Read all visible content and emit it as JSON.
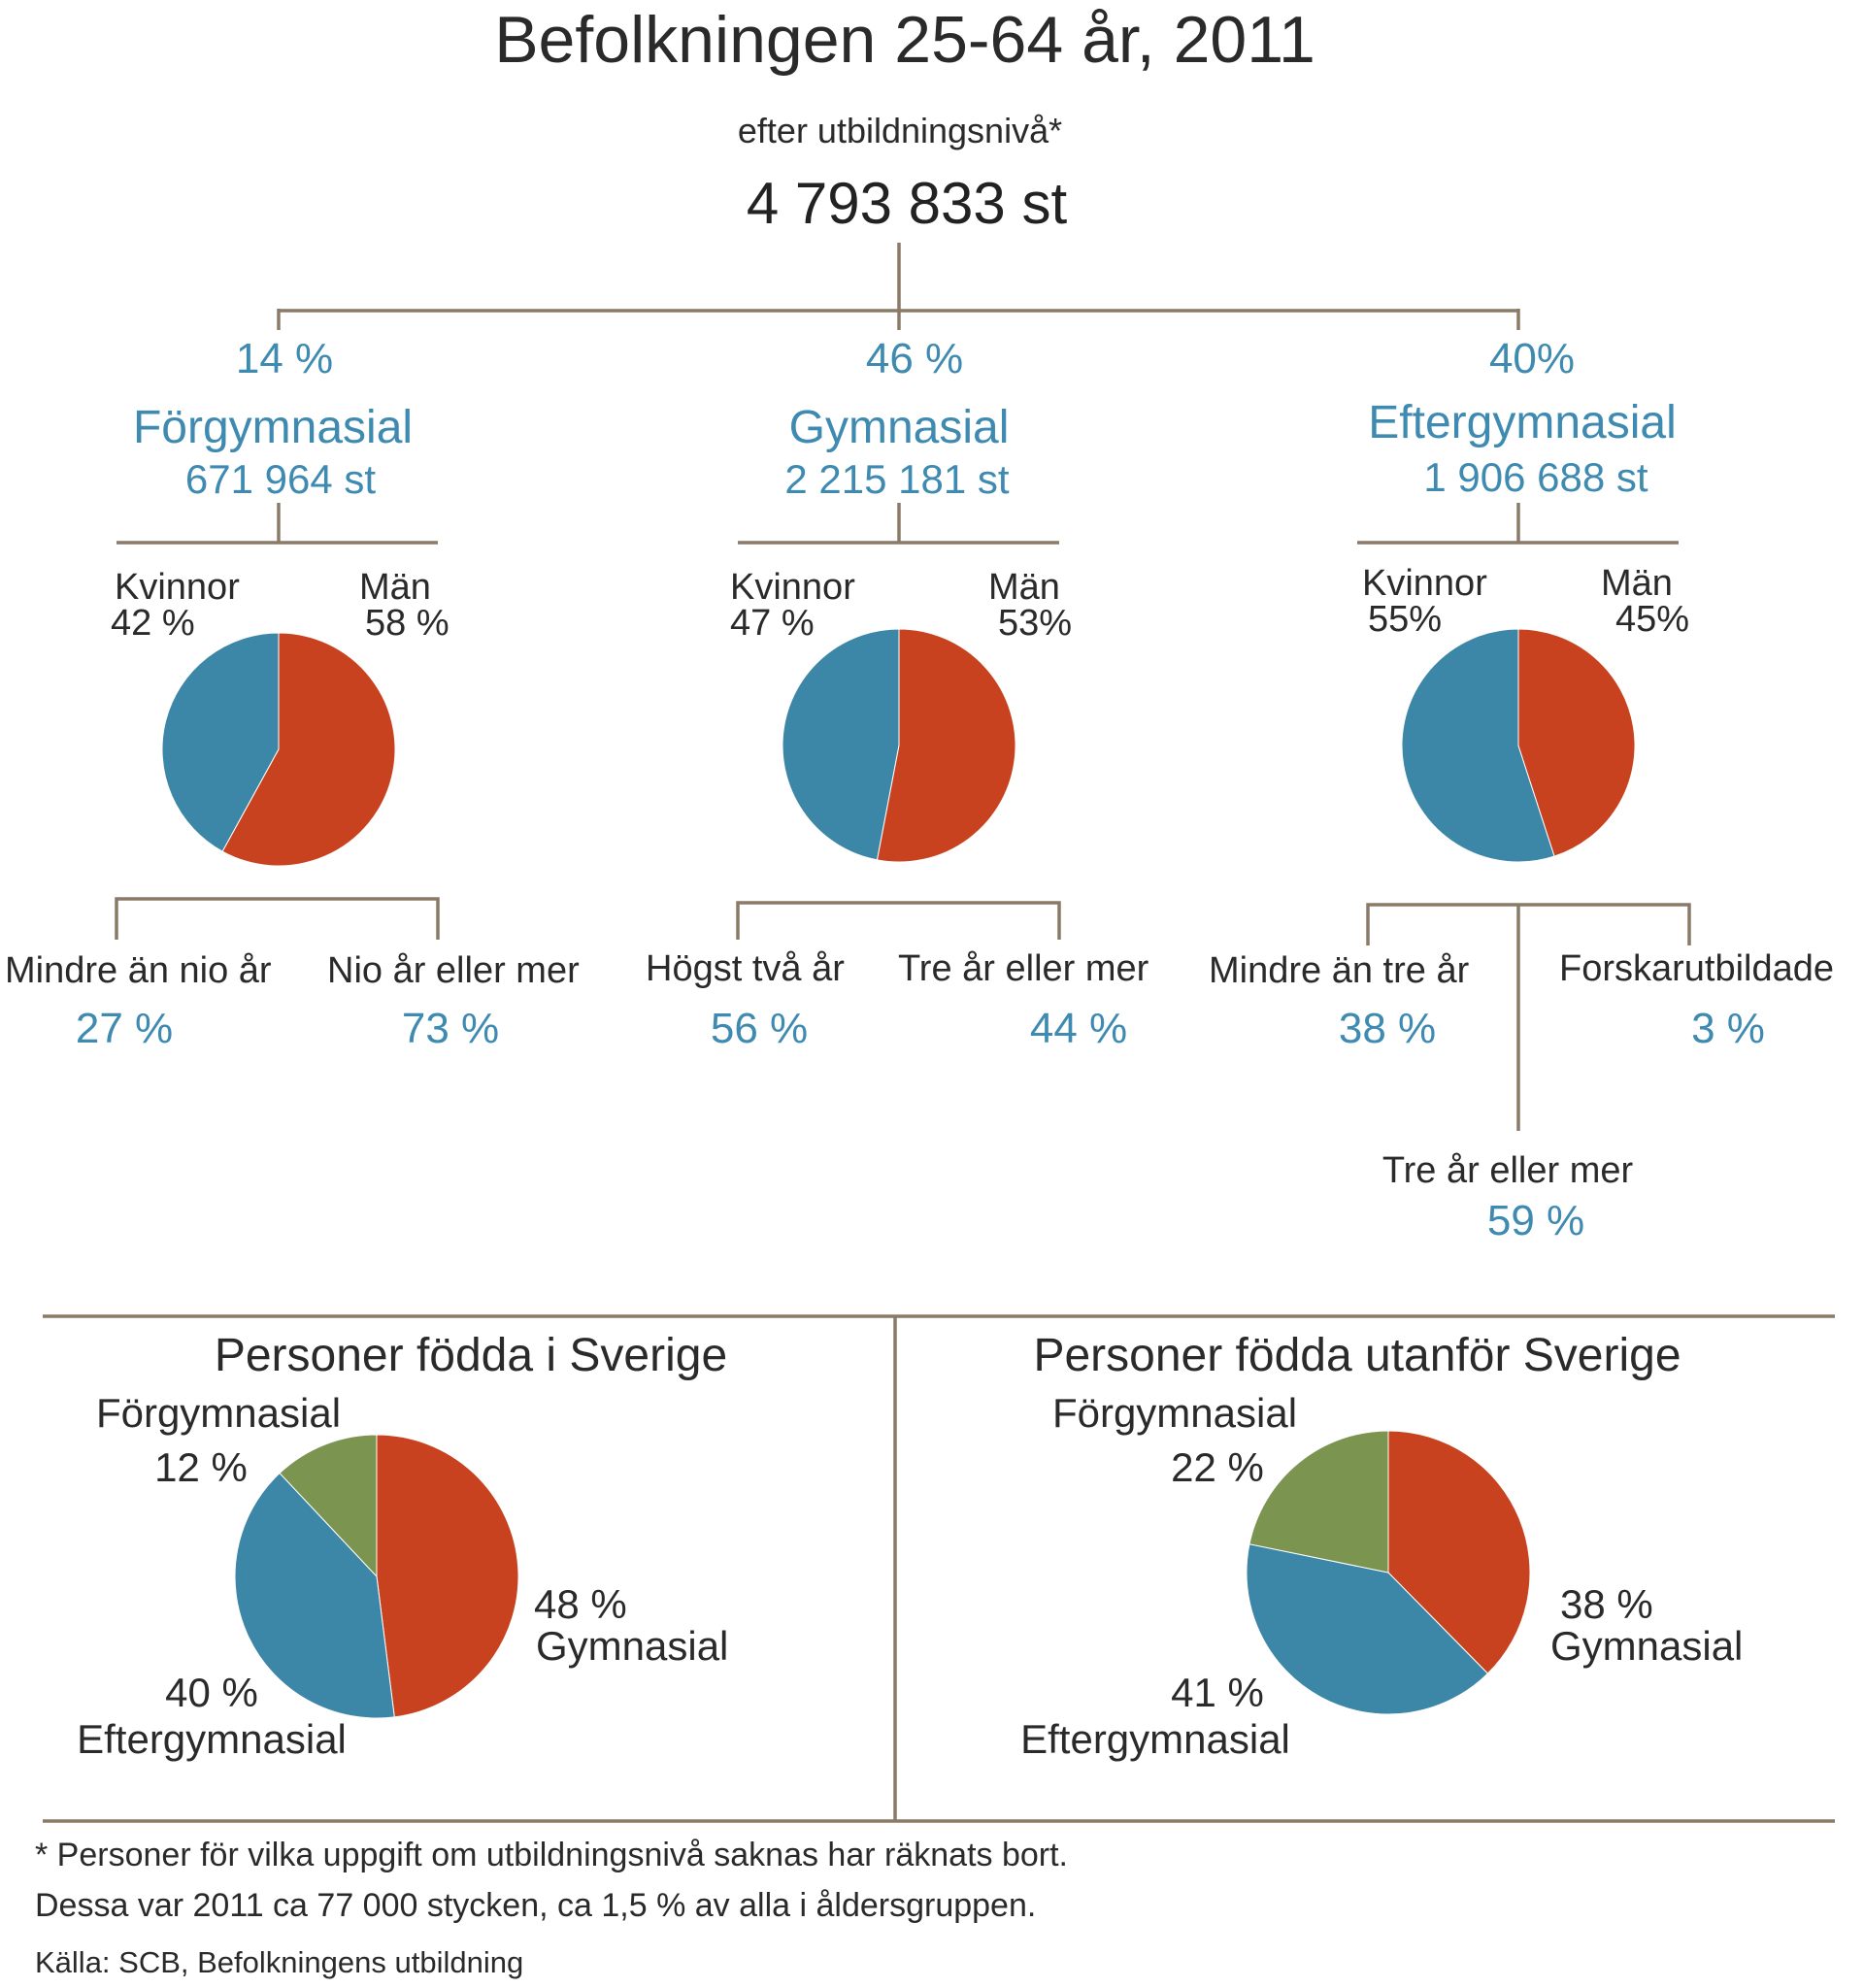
{
  "colors": {
    "women": "#3c86a7",
    "men": "#c9421f",
    "green": "#7b9550",
    "blue_text": "#3e8ab1",
    "lines": "#8a7a68"
  },
  "header": {
    "title": "Befolkningen 25-64 år, 2011",
    "subtitle": "efter utbildningsnivå*",
    "total": "4 793 833 st"
  },
  "levels": [
    {
      "pct": "14 %",
      "name": "Förgymnasial",
      "count": "671 964 st",
      "women_label": "Kvinnor",
      "women_pct": "42 %",
      "men_label": "Män",
      "men_pct": "58 %",
      "subs": [
        {
          "label": "Mindre än nio år",
          "pct": "27 %"
        },
        {
          "label": "Nio år eller mer",
          "pct": "73 %"
        }
      ]
    },
    {
      "pct": "46 %",
      "name": "Gymnasial",
      "count": "2 215 181 st",
      "women_label": "Kvinnor",
      "women_pct": "47 %",
      "men_label": "Män",
      "men_pct": "53%",
      "subs": [
        {
          "label": "Högst två år",
          "pct": "56 %"
        },
        {
          "label": "Tre år eller mer",
          "pct": "44 %"
        }
      ]
    },
    {
      "pct": "40%",
      "name": "Eftergymnasial",
      "count": "1 906 688 st",
      "women_label": "Kvinnor",
      "women_pct": "55%",
      "men_label": "Män",
      "men_pct": "45%",
      "subs": [
        {
          "label": "Mindre än tre år",
          "pct": "38 %"
        },
        {
          "label": "Forskarutbildade",
          "pct": "3 %"
        },
        {
          "label": "Tre år eller mer",
          "pct": "59 %"
        }
      ]
    }
  ],
  "born": [
    {
      "title": "Personer födda i Sverige",
      "labels": {
        "forgym_name": "Förgymnasial",
        "forgym_pct": "12 %",
        "gym_pct": "48 %",
        "gym_name": "Gymnasial",
        "efter_pct": "40 %",
        "efter_name": "Eftergymnasial"
      }
    },
    {
      "title": "Personer födda utanför Sverige",
      "labels": {
        "forgym_name": "Förgymnasial",
        "forgym_pct": "22 %",
        "gym_pct": "38 %",
        "gym_name": "Gymnasial",
        "efter_pct": "41 %",
        "efter_name": "Eftergymnasial"
      }
    }
  ],
  "footnote": {
    "line1": "* Personer för vilka uppgift om utbildningsnivå saknas har räknats bort.",
    "line2": "Dessa var 2011 ca 77 000 stycken, ca 1,5 % av alla i åldersgruppen.",
    "source": "Källa: SCB, Befolkningens utbildning"
  },
  "chart_data": [
    {
      "type": "pie",
      "title": "Förgymnasial",
      "categories": [
        "Kvinnor",
        "Män"
      ],
      "values": [
        42,
        58
      ]
    },
    {
      "type": "pie",
      "title": "Gymnasial",
      "categories": [
        "Kvinnor",
        "Män"
      ],
      "values": [
        47,
        53
      ]
    },
    {
      "type": "pie",
      "title": "Eftergymnasial",
      "categories": [
        "Kvinnor",
        "Män"
      ],
      "values": [
        55,
        45
      ]
    },
    {
      "type": "pie",
      "title": "Personer födda i Sverige",
      "categories": [
        "Gymnasial",
        "Eftergymnasial",
        "Förgymnasial"
      ],
      "values": [
        48,
        40,
        12
      ]
    },
    {
      "type": "pie",
      "title": "Personer födda utanför Sverige",
      "categories": [
        "Gymnasial",
        "Eftergymnasial",
        "Förgymnasial"
      ],
      "values": [
        38,
        41,
        22
      ]
    }
  ]
}
